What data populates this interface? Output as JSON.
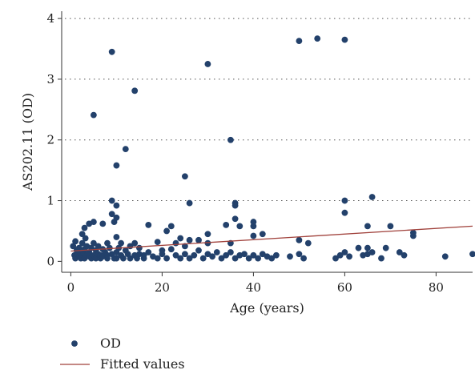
{
  "chart_data": {
    "type": "scatter",
    "xlabel": "Age (years)",
    "ylabel": "AS202.11 (OD)",
    "xlim": [
      -2,
      88
    ],
    "ylim": [
      -0.18,
      4.12
    ],
    "x_ticks": [
      "0",
      "20",
      "40",
      "60",
      "80"
    ],
    "y_ticks": [
      "0",
      "1",
      "2",
      "3",
      "4"
    ],
    "grid": "horizontal dotted",
    "legend": "bottom-left",
    "colors": {
      "points": "#23416b",
      "fit": "#a0413b",
      "grid": "#555555"
    },
    "series": [
      {
        "name": "OD",
        "type": "scatter",
        "points": [
          [
            0.5,
            0.25
          ],
          [
            0.8,
            0.1
          ],
          [
            1,
            0.05
          ],
          [
            1,
            0.33
          ],
          [
            1.3,
            0.18
          ],
          [
            1.5,
            0.12
          ],
          [
            1.8,
            0.22
          ],
          [
            2,
            0.08
          ],
          [
            2,
            0.15
          ],
          [
            2.2,
            0.05
          ],
          [
            2.5,
            0.3
          ],
          [
            2.5,
            0.45
          ],
          [
            2.8,
            0.12
          ],
          [
            3,
            0.55
          ],
          [
            3,
            0.05
          ],
          [
            3,
            0.2
          ],
          [
            3.2,
            0.38
          ],
          [
            3.5,
            0.1
          ],
          [
            3.5,
            0.25
          ],
          [
            4,
            0.62
          ],
          [
            4,
            0.08
          ],
          [
            4,
            0.15
          ],
          [
            4.5,
            0.05
          ],
          [
            4.5,
            0.22
          ],
          [
            5,
            0.65
          ],
          [
            5,
            0.1
          ],
          [
            5,
            0.3
          ],
          [
            5,
            2.41
          ],
          [
            5.5,
            0.05
          ],
          [
            5.5,
            0.18
          ],
          [
            6,
            0.12
          ],
          [
            6,
            0.25
          ],
          [
            6.5,
            0.05
          ],
          [
            6.5,
            0.1
          ],
          [
            7,
            0.62
          ],
          [
            7,
            0.2
          ],
          [
            7,
            0.08
          ],
          [
            7.5,
            0.15
          ],
          [
            8,
            0.05
          ],
          [
            8,
            0.3
          ],
          [
            8,
            0.1
          ],
          [
            8.5,
            0.22
          ],
          [
            9,
            3.45
          ],
          [
            9,
            1.0
          ],
          [
            9,
            0.78
          ],
          [
            9,
            0.12
          ],
          [
            9.5,
            0.05
          ],
          [
            9.5,
            0.65
          ],
          [
            10,
            1.58
          ],
          [
            10,
            0.92
          ],
          [
            10,
            0.72
          ],
          [
            10,
            0.4
          ],
          [
            10,
            0.15
          ],
          [
            10,
            0.05
          ],
          [
            10.5,
            0.22
          ],
          [
            11,
            0.1
          ],
          [
            11,
            0.3
          ],
          [
            11.5,
            0.05
          ],
          [
            12,
            1.85
          ],
          [
            12,
            0.18
          ],
          [
            12.5,
            0.12
          ],
          [
            13,
            0.05
          ],
          [
            13,
            0.25
          ],
          [
            14,
            2.81
          ],
          [
            14,
            0.3
          ],
          [
            14,
            0.1
          ],
          [
            14.5,
            0.05
          ],
          [
            15,
            0.22
          ],
          [
            15,
            0.12
          ],
          [
            16,
            0.05
          ],
          [
            16,
            0.1
          ],
          [
            17,
            0.6
          ],
          [
            17,
            0.15
          ],
          [
            18,
            0.08
          ],
          [
            19,
            0.32
          ],
          [
            19,
            0.05
          ],
          [
            20,
            0.18
          ],
          [
            20,
            0.12
          ],
          [
            21,
            0.5
          ],
          [
            21,
            0.05
          ],
          [
            22,
            0.58
          ],
          [
            22,
            0.2
          ],
          [
            23,
            0.1
          ],
          [
            23,
            0.3
          ],
          [
            24,
            0.38
          ],
          [
            24,
            0.05
          ],
          [
            25,
            1.4
          ],
          [
            25,
            0.25
          ],
          [
            25,
            0.12
          ],
          [
            26,
            0.96
          ],
          [
            26,
            0.35
          ],
          [
            26,
            0.05
          ],
          [
            27,
            0.1
          ],
          [
            28,
            0.35
          ],
          [
            28,
            0.18
          ],
          [
            29,
            0.05
          ],
          [
            30,
            3.25
          ],
          [
            30,
            0.45
          ],
          [
            30,
            0.3
          ],
          [
            30,
            0.12
          ],
          [
            31,
            0.08
          ],
          [
            32,
            0.15
          ],
          [
            33,
            0.05
          ],
          [
            34,
            0.6
          ],
          [
            34,
            0.1
          ],
          [
            35,
            2.0
          ],
          [
            35,
            0.3
          ],
          [
            35,
            0.15
          ],
          [
            36,
            0.96
          ],
          [
            36,
            0.92
          ],
          [
            36,
            0.7
          ],
          [
            36,
            0.05
          ],
          [
            37,
            0.58
          ],
          [
            37,
            0.1
          ],
          [
            38,
            0.12
          ],
          [
            39,
            0.05
          ],
          [
            40,
            0.65
          ],
          [
            40,
            0.58
          ],
          [
            40,
            0.42
          ],
          [
            40,
            0.1
          ],
          [
            41,
            0.05
          ],
          [
            42,
            0.45
          ],
          [
            42,
            0.12
          ],
          [
            43,
            0.08
          ],
          [
            44,
            0.05
          ],
          [
            45,
            0.1
          ],
          [
            48,
            0.08
          ],
          [
            50,
            3.63
          ],
          [
            50,
            0.35
          ],
          [
            50,
            0.12
          ],
          [
            51,
            0.05
          ],
          [
            52,
            0.3
          ],
          [
            54,
            3.67
          ],
          [
            58,
            0.05
          ],
          [
            59,
            0.1
          ],
          [
            60,
            3.65
          ],
          [
            60,
            1.0
          ],
          [
            60,
            0.8
          ],
          [
            60,
            0.15
          ],
          [
            61,
            0.08
          ],
          [
            63,
            0.22
          ],
          [
            64,
            0.1
          ],
          [
            65,
            0.58
          ],
          [
            65,
            0.22
          ],
          [
            65,
            0.12
          ],
          [
            66,
            1.06
          ],
          [
            66,
            0.15
          ],
          [
            68,
            0.05
          ],
          [
            69,
            0.22
          ],
          [
            70,
            0.58
          ],
          [
            72,
            0.15
          ],
          [
            73,
            0.1
          ],
          [
            75,
            0.47
          ],
          [
            75,
            0.42
          ],
          [
            82,
            0.08
          ],
          [
            88,
            0.12
          ]
        ]
      },
      {
        "name": "Fitted values",
        "type": "line",
        "points": [
          [
            0,
            0.17
          ],
          [
            88,
            0.58
          ]
        ]
      }
    ]
  }
}
